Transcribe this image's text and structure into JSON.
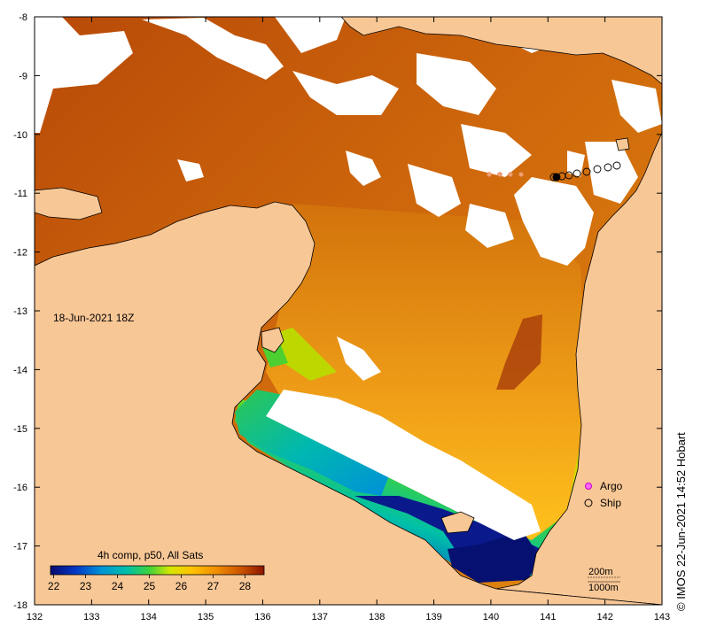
{
  "map": {
    "timestamp_label": "18-Jun-2021 18Z",
    "credit": "© IMOS 22-Jun-2021 14:52 Hobart",
    "land_color": "#f8c796",
    "cloud_color": "#ffffff",
    "lon_ticks": [
      "132",
      "133",
      "134",
      "135",
      "136",
      "137",
      "138",
      "139",
      "140",
      "141",
      "142",
      "143"
    ],
    "lat_ticks": [
      "-8",
      "-9",
      "-10",
      "-11",
      "-12",
      "-13",
      "-14",
      "-15",
      "-16",
      "-17",
      "-18"
    ],
    "colorbar": {
      "title": "4h comp, p50, All Sats",
      "tick_labels": [
        "22",
        "23",
        "24",
        "25",
        "26",
        "27",
        "28"
      ],
      "range": [
        21.9,
        28.6
      ],
      "colors": [
        "#0a0a6e",
        "#0038c8",
        "#0094d6",
        "#00c0a8",
        "#3cd23c",
        "#d6e600",
        "#ffc400",
        "#f08c00",
        "#c85000",
        "#8c1400"
      ]
    },
    "legend": [
      {
        "label": "Argo",
        "marker": "magenta-star"
      },
      {
        "label": "Ship",
        "marker": "open-circle"
      }
    ],
    "isobaths": [
      "200m",
      "1000m"
    ]
  }
}
